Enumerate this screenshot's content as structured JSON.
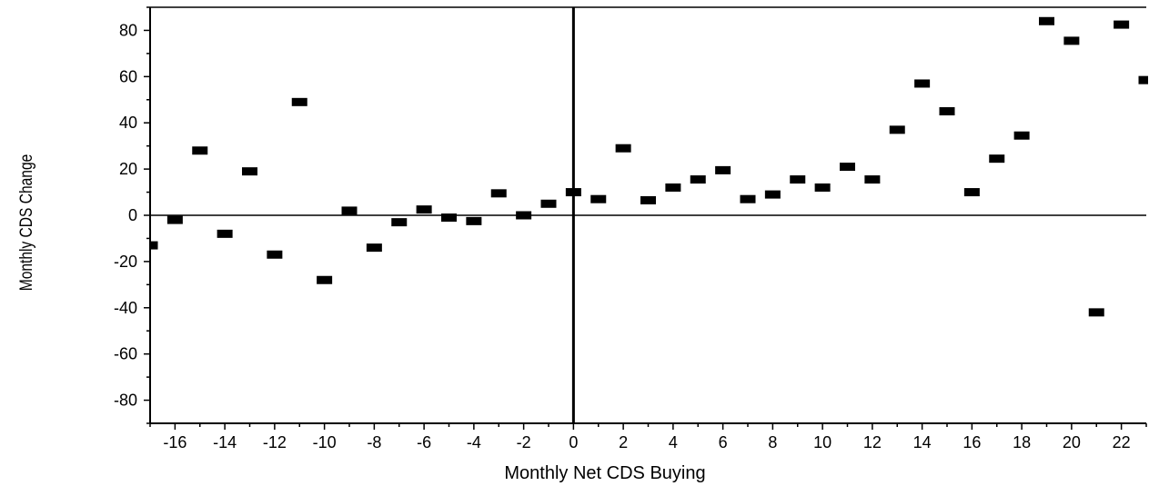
{
  "chart_data": {
    "type": "scatter",
    "title": "",
    "xlabel": "Monthly Net CDS Buying",
    "ylabel": "Monthly CDS Change",
    "xlim": [
      -17,
      23
    ],
    "ylim": [
      -90,
      90
    ],
    "xticks": [
      -16,
      -14,
      -12,
      -10,
      -8,
      -6,
      -4,
      -2,
      0,
      2,
      4,
      6,
      8,
      10,
      12,
      14,
      16,
      18,
      20,
      22
    ],
    "yticks": [
      -80,
      -60,
      -40,
      -20,
      0,
      20,
      40,
      60,
      80
    ],
    "grid": false,
    "reference_lines": {
      "x": 0,
      "y": 0
    },
    "marker": "dash",
    "marker_color": "#000000",
    "series": [
      {
        "points": [
          {
            "x": -17,
            "y": -13
          },
          {
            "x": -16,
            "y": -2
          },
          {
            "x": -15,
            "y": 28
          },
          {
            "x": -14,
            "y": -8
          },
          {
            "x": -13,
            "y": 19
          },
          {
            "x": -12,
            "y": -17
          },
          {
            "x": -11,
            "y": 49
          },
          {
            "x": -10,
            "y": -28
          },
          {
            "x": -9,
            "y": 2
          },
          {
            "x": -8,
            "y": -14
          },
          {
            "x": -7,
            "y": -3
          },
          {
            "x": -6,
            "y": 2.5
          },
          {
            "x": -5,
            "y": -1
          },
          {
            "x": -4,
            "y": -2.5
          },
          {
            "x": -3,
            "y": 9.5
          },
          {
            "x": -2,
            "y": 0
          },
          {
            "x": -1,
            "y": 5
          },
          {
            "x": 0,
            "y": 10
          },
          {
            "x": 1,
            "y": 7
          },
          {
            "x": 2,
            "y": 29
          },
          {
            "x": 3,
            "y": 6.5
          },
          {
            "x": 4,
            "y": 12
          },
          {
            "x": 5,
            "y": 15.5
          },
          {
            "x": 6,
            "y": 19.5
          },
          {
            "x": 7,
            "y": 7
          },
          {
            "x": 8,
            "y": 9
          },
          {
            "x": 9,
            "y": 15.5
          },
          {
            "x": 10,
            "y": 12
          },
          {
            "x": 11,
            "y": 21
          },
          {
            "x": 12,
            "y": 15.5
          },
          {
            "x": 13,
            "y": 37
          },
          {
            "x": 14,
            "y": 57
          },
          {
            "x": 15,
            "y": 45
          },
          {
            "x": 16,
            "y": 10
          },
          {
            "x": 17,
            "y": 24.5
          },
          {
            "x": 18,
            "y": 34.5
          },
          {
            "x": 19,
            "y": 84
          },
          {
            "x": 20,
            "y": 75.5
          },
          {
            "x": 21,
            "y": -42
          },
          {
            "x": 22,
            "y": 82.5
          },
          {
            "x": 23,
            "y": 58.5
          }
        ]
      }
    ]
  }
}
